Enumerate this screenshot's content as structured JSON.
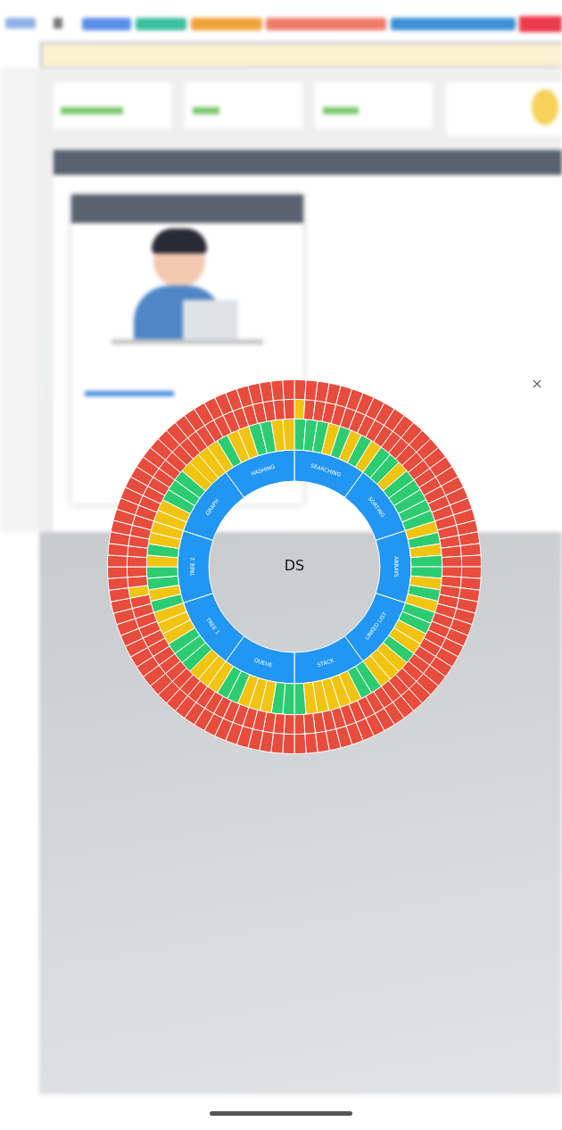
{
  "chart_data": {
    "type": "sunburst",
    "title": "DS",
    "categories": [
      "SEARCHING",
      "SORTING",
      "ARRAYS",
      "LINKED LIST",
      "STACK",
      "QUEUE",
      "TREE 1",
      "TREE 2",
      "GRAPH",
      "HASHING"
    ],
    "color": "#2196f3",
    "rings": [
      {
        "colors": [
          [
            "#2ecc71",
            "#2ecc71",
            "#2ecc71",
            "#f1c40f",
            "#2ecc71",
            "#f1c40f",
            "#2ecc71",
            "#f1c40f"
          ],
          [
            "#2ecc71",
            "#2ecc71",
            "#f1c40f",
            "#2ecc71",
            "#2ecc71",
            "#2ecc71",
            "#2ecc71",
            "#2ecc71"
          ],
          [
            "#f1c40f",
            "#2ecc71",
            "#f1c40f",
            "#2ecc71",
            "#2ecc71",
            "#f1c40f",
            "#2ecc71",
            "#f1c40f"
          ],
          [
            "#2ecc71",
            "#2ecc71",
            "#f1c40f",
            "#f1c40f",
            "#2ecc71",
            "#f1c40f",
            "#f1c40f",
            "#f1c40f"
          ],
          [
            "#2ecc71",
            "#2ecc71",
            "#f1c40f",
            "#f1c40f",
            "#f1c40f",
            "#f1c40f",
            "#f1c40f",
            "#2ecc71"
          ],
          [
            "#2ecc71",
            "#2ecc71",
            "#f1c40f",
            "#f1c40f",
            "#f1c40f",
            "#2ecc71",
            "#2ecc71",
            "#f1c40f"
          ],
          [
            "#f1c40f",
            "#f1c40f",
            "#2ecc71",
            "#2ecc71",
            "#2ecc71",
            "#f1c40f",
            "#f1c40f",
            "#f1c40f"
          ],
          [
            "#2ecc71",
            "#f1c40f",
            "#2ecc71",
            "#2ecc71",
            "#f1c40f",
            "#2ecc71",
            "#f1c40f",
            "#f1c40f"
          ],
          [
            "#f1c40f",
            "#f1c40f",
            "#2ecc71",
            "#2ecc71",
            "#2ecc71",
            "#f1c40f",
            "#f1c40f",
            "#f1c40f"
          ],
          [
            "#f1c40f",
            "#2ecc71",
            "#f1c40f",
            "#f1c40f",
            "#2ecc71",
            "#2ecc71",
            "#f1c40f",
            "#f1c40f"
          ]
        ]
      },
      {
        "colors": [
          [
            "#f1c40f",
            "#e74c3c",
            "#e74c3c",
            "#e74c3c",
            "#e74c3c",
            "#e74c3c",
            "#e74c3c",
            "#e74c3c",
            "#e74c3c",
            "#e74c3c"
          ],
          [
            "#e74c3c",
            "#e74c3c",
            "#e74c3c",
            "#e74c3c",
            "#e74c3c",
            "#e74c3c",
            "#e74c3c",
            "#e74c3c",
            "#e74c3c",
            "#e74c3c"
          ],
          [
            "#e74c3c",
            "#e74c3c",
            "#e74c3c",
            "#e74c3c",
            "#e74c3c",
            "#e74c3c",
            "#e74c3c",
            "#e74c3c",
            "#e74c3c",
            "#e74c3c"
          ],
          [
            "#e74c3c",
            "#e74c3c",
            "#e74c3c",
            "#e74c3c",
            "#e74c3c",
            "#e74c3c",
            "#e74c3c",
            "#e74c3c",
            "#e74c3c",
            "#e74c3c"
          ],
          [
            "#e74c3c",
            "#e74c3c",
            "#e74c3c",
            "#e74c3c",
            "#e74c3c",
            "#e74c3c",
            "#e74c3c",
            "#e74c3c",
            "#e74c3c",
            "#e74c3c"
          ],
          [
            "#e74c3c",
            "#e74c3c",
            "#e74c3c",
            "#e74c3c",
            "#e74c3c",
            "#e74c3c",
            "#e74c3c",
            "#e74c3c",
            "#e74c3c",
            "#e74c3c"
          ],
          [
            "#e74c3c",
            "#e74c3c",
            "#e74c3c",
            "#e74c3c",
            "#e74c3c",
            "#e74c3c",
            "#e74c3c",
            "#e74c3c",
            "#e74c3c",
            "#e74c3c"
          ],
          [
            "#e74c3c",
            "#e74c3c",
            "#f1c40f",
            "#e74c3c",
            "#e74c3c",
            "#e74c3c",
            "#e74c3c",
            "#e74c3c",
            "#e74c3c",
            "#e74c3c"
          ],
          [
            "#e74c3c",
            "#e74c3c",
            "#e74c3c",
            "#e74c3c",
            "#e74c3c",
            "#e74c3c",
            "#e74c3c",
            "#e74c3c",
            "#e74c3c",
            "#e74c3c"
          ],
          [
            "#e74c3c",
            "#e74c3c",
            "#e74c3c",
            "#e74c3c",
            "#e74c3c",
            "#e74c3c",
            "#e74c3c",
            "#e74c3c",
            "#e74c3c",
            "#e74c3c"
          ]
        ]
      },
      {
        "colors": [
          [
            "#e74c3c",
            "#e74c3c",
            "#e74c3c",
            "#e74c3c",
            "#e74c3c",
            "#e74c3c",
            "#e74c3c",
            "#e74c3c",
            "#e74c3c",
            "#e74c3c"
          ],
          [
            "#e74c3c",
            "#e74c3c",
            "#e74c3c",
            "#e74c3c",
            "#e74c3c",
            "#e74c3c",
            "#e74c3c",
            "#e74c3c",
            "#e74c3c",
            "#e74c3c"
          ],
          [
            "#e74c3c",
            "#e74c3c",
            "#e74c3c",
            "#e74c3c",
            "#e74c3c",
            "#e74c3c",
            "#e74c3c",
            "#e74c3c",
            "#e74c3c",
            "#e74c3c"
          ],
          [
            "#e74c3c",
            "#e74c3c",
            "#e74c3c",
            "#e74c3c",
            "#e74c3c",
            "#e74c3c",
            "#e74c3c",
            "#e74c3c",
            "#e74c3c",
            "#e74c3c"
          ],
          [
            "#e74c3c",
            "#e74c3c",
            "#e74c3c",
            "#e74c3c",
            "#e74c3c",
            "#e74c3c",
            "#e74c3c",
            "#e74c3c",
            "#e74c3c",
            "#e74c3c"
          ],
          [
            "#e74c3c",
            "#e74c3c",
            "#e74c3c",
            "#e74c3c",
            "#e74c3c",
            "#e74c3c",
            "#e74c3c",
            "#e74c3c",
            "#e74c3c",
            "#e74c3c"
          ],
          [
            "#e74c3c",
            "#e74c3c",
            "#e74c3c",
            "#e74c3c",
            "#e74c3c",
            "#e74c3c",
            "#e74c3c",
            "#e74c3c",
            "#e74c3c",
            "#e74c3c"
          ],
          [
            "#e74c3c",
            "#e74c3c",
            "#e74c3c",
            "#e74c3c",
            "#e74c3c",
            "#e74c3c",
            "#e74c3c",
            "#e74c3c",
            "#e74c3c",
            "#e74c3c"
          ],
          [
            "#e74c3c",
            "#e74c3c",
            "#e74c3c",
            "#e74c3c",
            "#e74c3c",
            "#e74c3c",
            "#e74c3c",
            "#e74c3c",
            "#e74c3c",
            "#e74c3c"
          ],
          [
            "#e74c3c",
            "#e74c3c",
            "#e74c3c",
            "#e74c3c",
            "#e74c3c",
            "#e74c3c",
            "#e74c3c",
            "#e74c3c",
            "#e74c3c",
            "#e74c3c"
          ]
        ]
      }
    ]
  }
}
